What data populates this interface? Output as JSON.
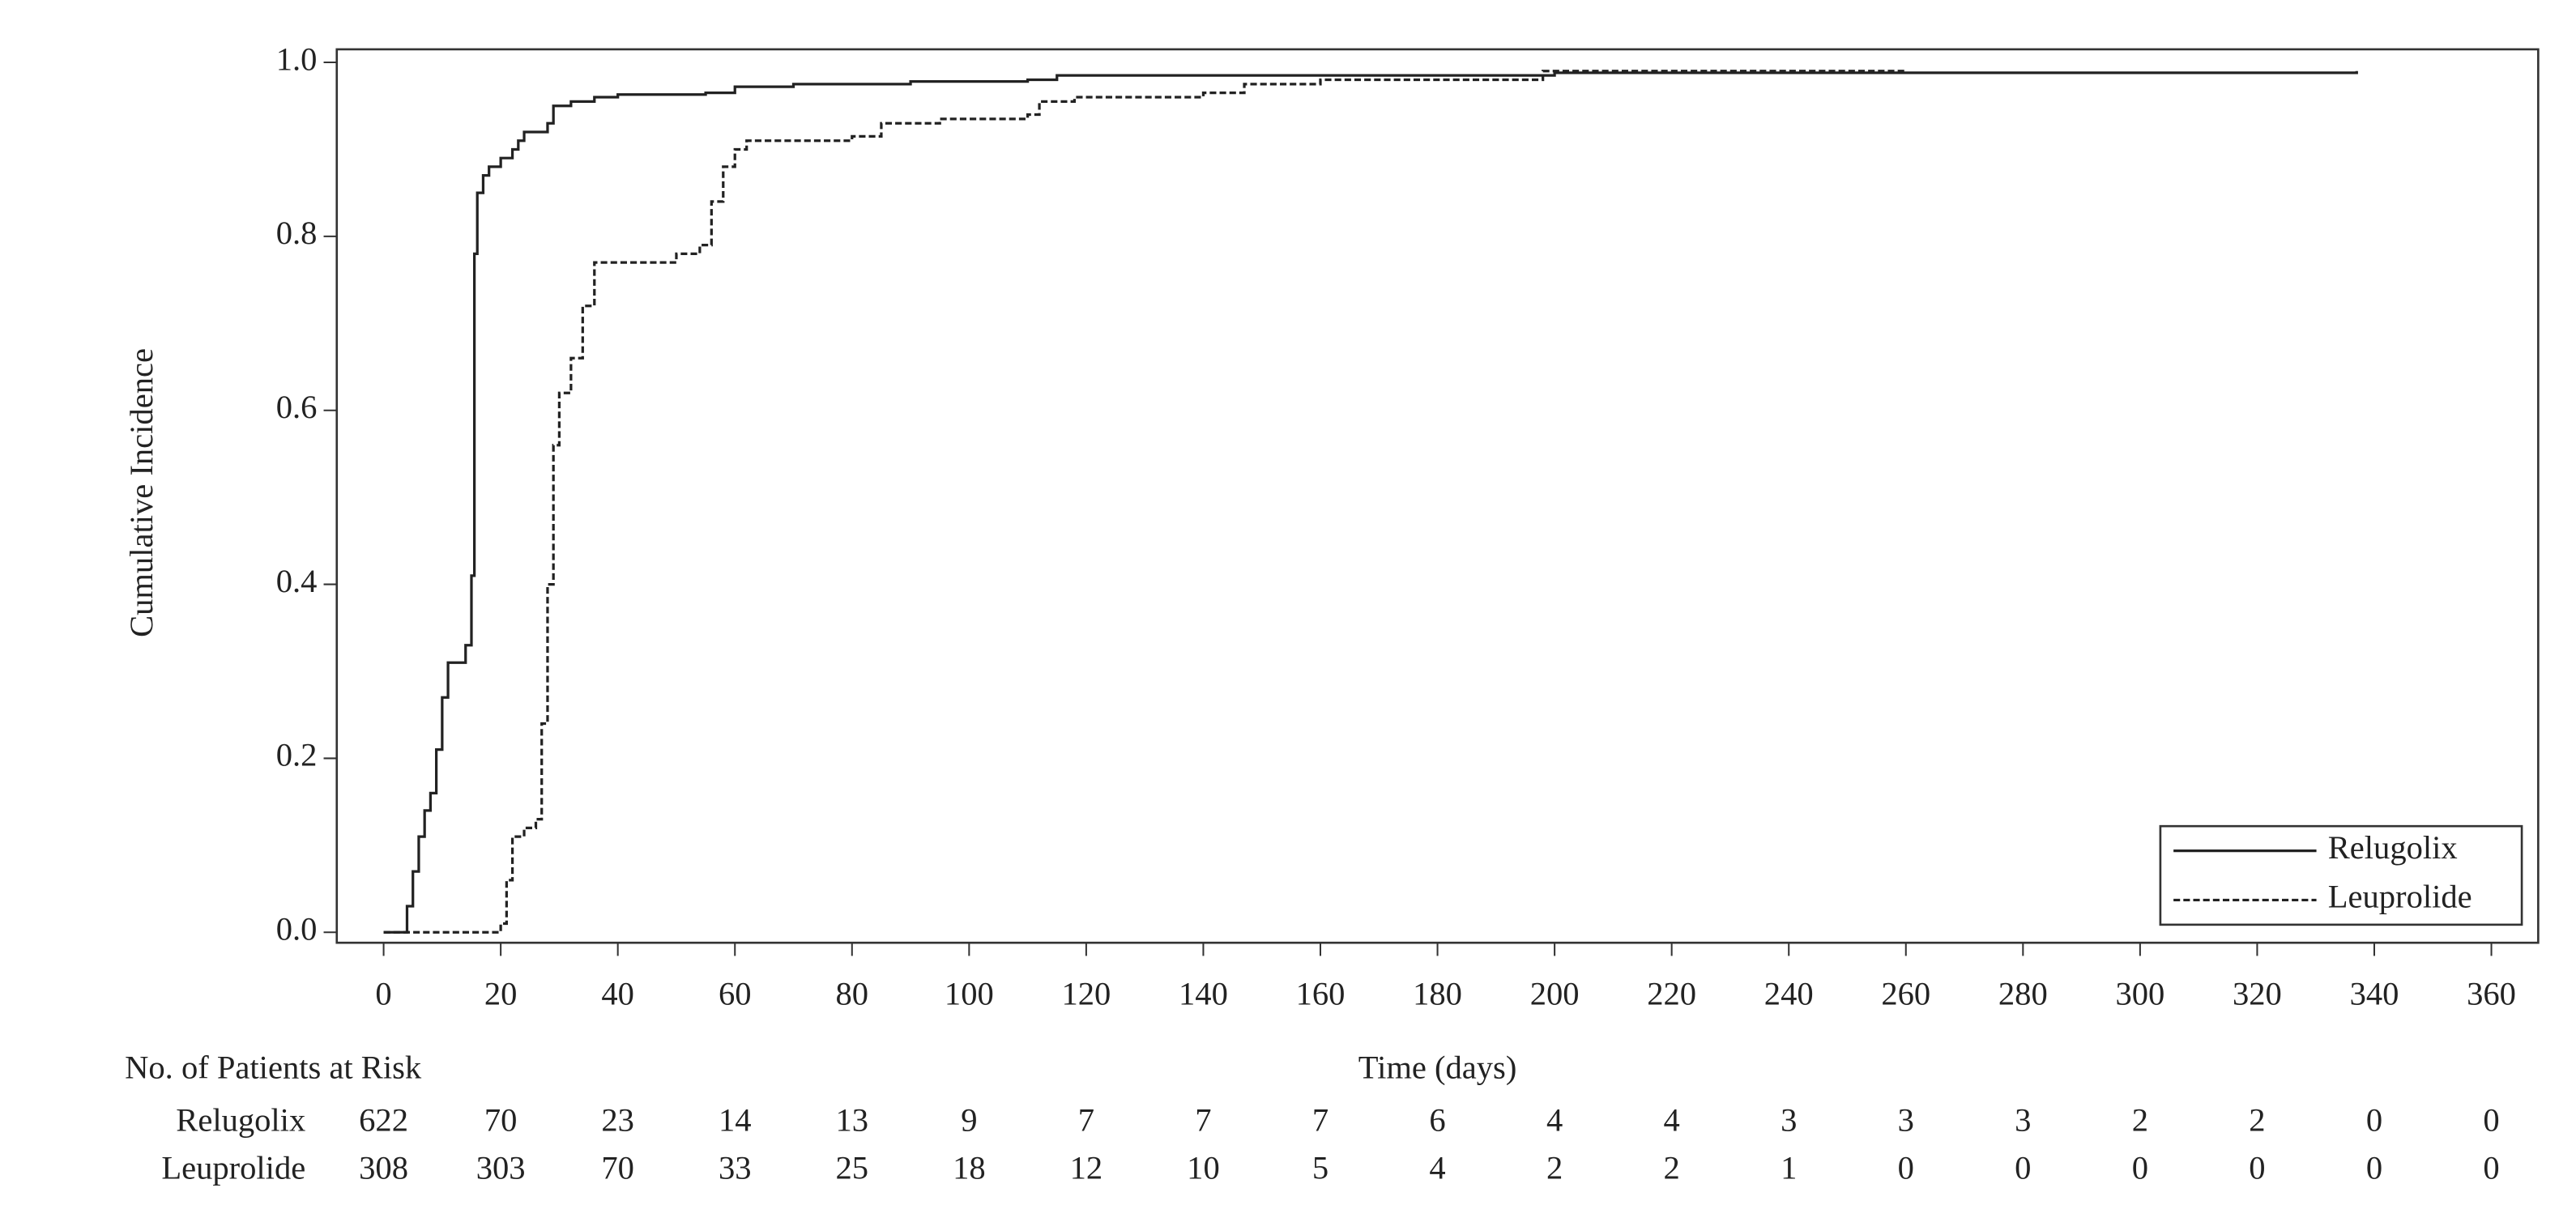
{
  "chart_data": {
    "type": "step",
    "y_label": "Cumulative Incidence",
    "x_label": "Time (days)",
    "xlim": [
      -8,
      368
    ],
    "ylim": [
      -0.012,
      1.015
    ],
    "xticks": [
      0,
      20,
      40,
      60,
      80,
      100,
      120,
      140,
      160,
      180,
      200,
      220,
      240,
      260,
      280,
      300,
      320,
      340,
      360
    ],
    "yticks": [
      {
        "value": 0,
        "label": "0.0"
      },
      0.2,
      0.4,
      0.6,
      0.8,
      {
        "value": 1,
        "label": "1.0"
      }
    ],
    "legend": "lower right",
    "series": [
      {
        "name": "Relugolix",
        "color": "#222222",
        "dash": false,
        "x": [
          0,
          3,
          4,
          5,
          6,
          7,
          8,
          9,
          10,
          11,
          13,
          14,
          15,
          15.5,
          16,
          17,
          18,
          20,
          22,
          23,
          24,
          28,
          29,
          32,
          36,
          40,
          55,
          60,
          70,
          90,
          110,
          115,
          200,
          337
        ],
        "values": [
          0,
          0,
          0.03,
          0.07,
          0.11,
          0.14,
          0.16,
          0.21,
          0.27,
          0.31,
          0.31,
          0.33,
          0.41,
          0.78,
          0.85,
          0.87,
          0.88,
          0.89,
          0.9,
          0.91,
          0.92,
          0.93,
          0.95,
          0.955,
          0.96,
          0.963,
          0.965,
          0.972,
          0.975,
          0.978,
          0.98,
          0.985,
          0.988,
          0.99
        ]
      },
      {
        "name": "Leuprolide",
        "color": "#222222",
        "dash": true,
        "x": [
          0,
          20,
          21,
          22,
          24,
          26,
          27,
          28,
          29,
          30,
          32,
          34,
          36,
          50,
          54,
          56,
          58,
          60,
          62,
          80,
          85,
          95,
          110,
          112,
          118,
          140,
          147,
          160,
          198,
          260
        ],
        "values": [
          0,
          0.01,
          0.06,
          0.11,
          0.12,
          0.13,
          0.24,
          0.4,
          0.56,
          0.62,
          0.66,
          0.72,
          0.77,
          0.78,
          0.79,
          0.84,
          0.88,
          0.9,
          0.91,
          0.915,
          0.93,
          0.935,
          0.94,
          0.955,
          0.96,
          0.965,
          0.975,
          0.98,
          0.99,
          0.99
        ]
      }
    ],
    "risk_table": {
      "title": "No. of Patients at Risk",
      "rows": [
        {
          "name": "Relugolix",
          "values": [
            622,
            70,
            23,
            14,
            13,
            9,
            7,
            7,
            7,
            6,
            4,
            4,
            3,
            3,
            3,
            2,
            2,
            0,
            0
          ]
        },
        {
          "name": "Leuprolide",
          "values": [
            308,
            303,
            70,
            33,
            25,
            18,
            12,
            10,
            5,
            4,
            2,
            2,
            1,
            0,
            0,
            0,
            0,
            0,
            0
          ]
        }
      ]
    }
  }
}
